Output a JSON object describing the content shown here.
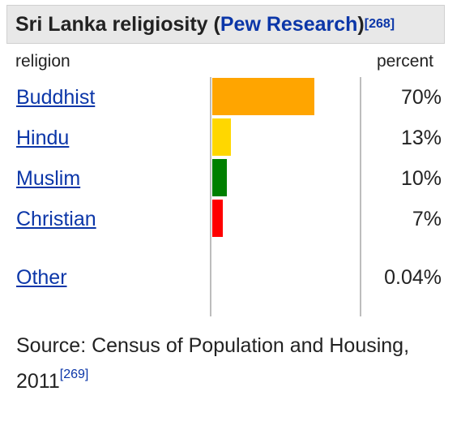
{
  "title": {
    "prefix": "Sri Lanka religiosity (",
    "link": "Pew Research",
    "suffix": ")",
    "ref": "[268]"
  },
  "headers": {
    "religion": "religion",
    "percent": "percent"
  },
  "chart_data": {
    "type": "bar",
    "orientation": "horizontal",
    "categories": [
      "Buddhist",
      "Hindu",
      "Muslim",
      "Christian",
      "Other"
    ],
    "values": [
      70,
      13,
      10,
      7,
      0.04
    ],
    "value_labels": [
      "70%",
      "13%",
      "10%",
      "7%",
      "0.04%"
    ],
    "colors": [
      "#ffa500",
      "#ffd700",
      "#008000",
      "#ff0000",
      "#ffffff"
    ],
    "xlim": [
      0,
      100
    ]
  },
  "source": {
    "text": "Source: Census of Population and Housing, 2011",
    "ref": "[269]"
  }
}
